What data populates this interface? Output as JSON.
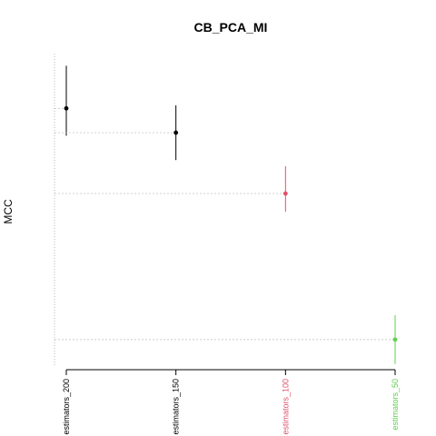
{
  "chart_data": {
    "type": "scatter",
    "title": "CB_PCA_MI",
    "xlabel": "",
    "ylabel": "MCC",
    "categories": [
      "estimators_200",
      "estimators_150",
      "estimators_100",
      "estimators_50"
    ],
    "values": [
      0.796,
      0.788,
      0.768,
      0.72
    ],
    "lower": [
      0.787,
      0.779,
      0.762,
      0.712
    ],
    "upper": [
      0.81,
      0.797,
      0.777,
      0.728
    ],
    "ylim": [
      0.711,
      0.814
    ],
    "colors": [
      "#000000",
      "#000000",
      "#DF536B",
      "#61D04F"
    ],
    "grid": "dotted horizontal reference lines from y-axis to each point",
    "legend": "none"
  }
}
